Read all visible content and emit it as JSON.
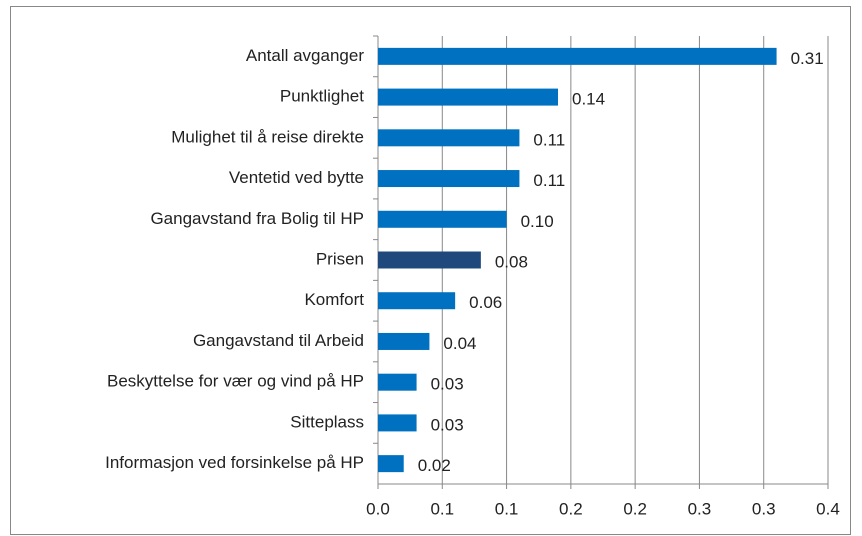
{
  "chart_data": {
    "type": "hbar",
    "categories": [
      "Antall avganger",
      "Punktlighet",
      "Mulighet til å reise direkte",
      "Ventetid ved bytte",
      "Gangavstand fra Bolig til HP",
      "Prisen",
      "Komfort",
      "Gangavstand til Arbeid",
      "Beskyttelse for vær og vind på HP",
      "Sitteplass",
      "Informasjon ved forsinkelse på HP"
    ],
    "values": [
      0.31,
      0.14,
      0.11,
      0.11,
      0.1,
      0.08,
      0.06,
      0.04,
      0.03,
      0.03,
      0.02
    ],
    "value_labels": [
      "0.31",
      "0.14",
      "0.11",
      "0.11",
      "0.10",
      "0.08",
      "0.06",
      "0.04",
      "0.03",
      "0.03",
      "0.02"
    ],
    "colors": [
      "#0070c0",
      "#0070c0",
      "#0070c0",
      "#0070c0",
      "#0070c0",
      "#1f497d",
      "#0070c0",
      "#0070c0",
      "#0070c0",
      "#0070c0",
      "#0070c0"
    ],
    "xlim": [
      0,
      0.35
    ],
    "xticks": [
      {
        "value": 0,
        "label": "0.0"
      },
      {
        "value": 0.05,
        "label": "0.1"
      },
      0.1,
      {
        "value": 0.15,
        "label": "0.2"
      },
      0.2,
      {
        "value": 0.25,
        "label": "0.3"
      },
      0.3,
      {
        "value": 0.35,
        "label": "0.4"
      }
    ],
    "grid": true
  }
}
